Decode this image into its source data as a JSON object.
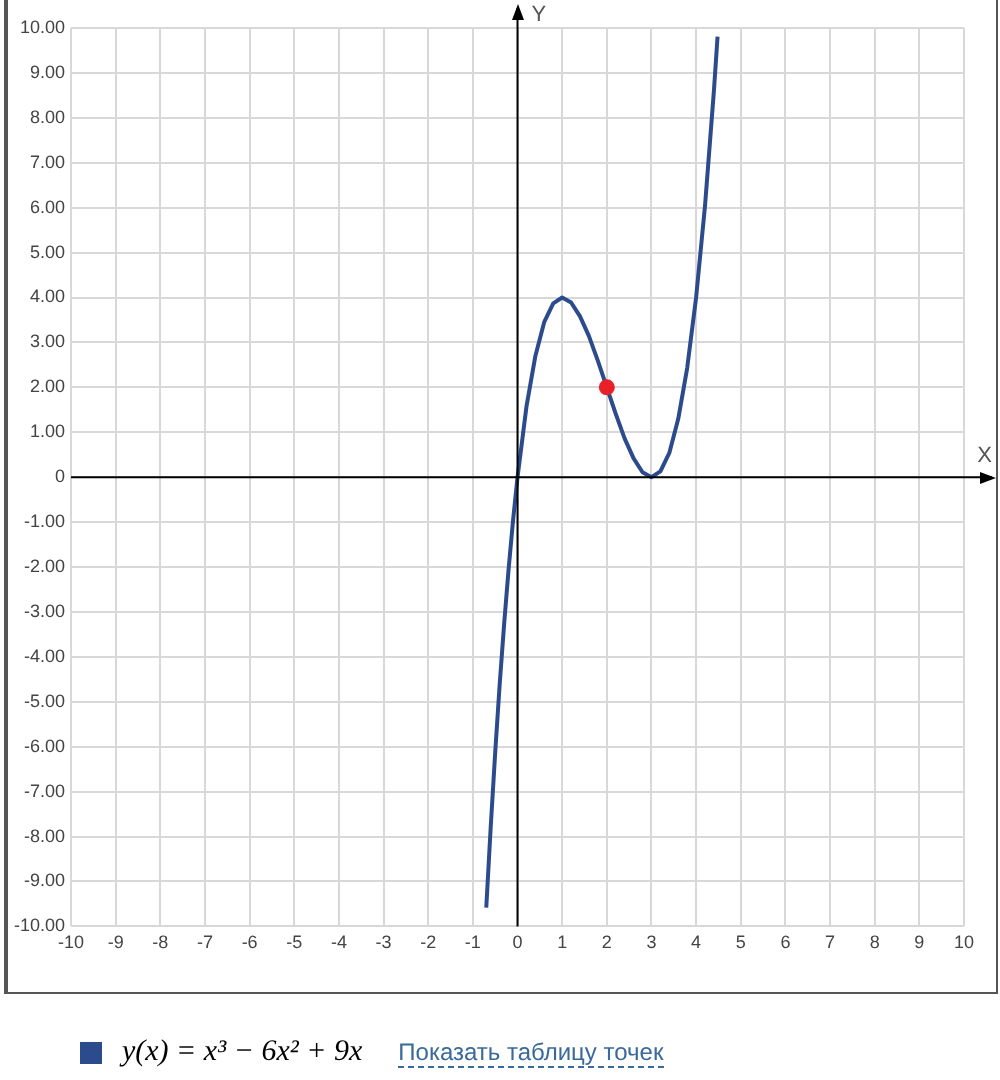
{
  "chart_data": {
    "type": "line",
    "xlabel": "X",
    "ylabel": "Y",
    "xlim": [
      -10,
      10
    ],
    "ylim": [
      -10,
      10
    ],
    "xticks": [
      -10,
      -9,
      -8,
      -7,
      -6,
      -5,
      -4,
      -3,
      -2,
      -1,
      0,
      1,
      2,
      3,
      4,
      5,
      6,
      7,
      8,
      9,
      10
    ],
    "yticks": [
      {
        "value": -10,
        "label": "-10.00"
      },
      {
        "value": -9,
        "label": "-9.00"
      },
      {
        "value": -8,
        "label": "-8.00"
      },
      {
        "value": -7,
        "label": "-7.00"
      },
      {
        "value": -6,
        "label": "-6.00"
      },
      {
        "value": -5,
        "label": "-5.00"
      },
      {
        "value": -4,
        "label": "-4.00"
      },
      {
        "value": -3,
        "label": "-3.00"
      },
      {
        "value": -2,
        "label": "-2.00"
      },
      {
        "value": -1,
        "label": "-1.00"
      },
      0,
      {
        "value": 1,
        "label": "1.00"
      },
      {
        "value": 2,
        "label": "2.00"
      },
      {
        "value": 3,
        "label": "3.00"
      },
      {
        "value": 4,
        "label": "4.00"
      },
      {
        "value": 5,
        "label": "5.00"
      },
      {
        "value": 6,
        "label": "6.00"
      },
      {
        "value": 7,
        "label": "7.00"
      },
      {
        "value": 8,
        "label": "8.00"
      },
      {
        "value": 9,
        "label": "9.00"
      },
      {
        "value": 10,
        "label": "10.00"
      }
    ],
    "grid": true,
    "legend": "bottom",
    "marker": "none",
    "line_style": "solid",
    "series": [
      {
        "name": "y(x) = x³ − 6x² + 9x",
        "color": "#2b4b8c",
        "x": [
          -0.7,
          -0.6,
          -0.5,
          -0.4,
          -0.3,
          -0.2,
          -0.1,
          0,
          0.2,
          0.4,
          0.6,
          0.8,
          1,
          1.2,
          1.4,
          1.6,
          1.8,
          2,
          2.2,
          2.4,
          2.6,
          2.8,
          3,
          3.2,
          3.4,
          3.6,
          3.8,
          4,
          4.2,
          4.4,
          4.48
        ],
        "values": [
          -9.58,
          -7.78,
          -6.13,
          -4.62,
          -3.27,
          -2.05,
          -0.96,
          0,
          1.57,
          2.7,
          3.46,
          3.87,
          4,
          3.89,
          3.58,
          3.14,
          2.59,
          2,
          1.41,
          0.86,
          0.42,
          0.11,
          0,
          0.13,
          0.54,
          1.3,
          2.43,
          4,
          6.05,
          8.62,
          9.81
        ]
      },
      {
        "type": "scatter",
        "color": "#e8202a",
        "marker": "circle",
        "x": [
          2
        ],
        "values": [
          2
        ]
      }
    ],
    "annotations": [
      "Показать таблицу точек"
    ]
  }
}
